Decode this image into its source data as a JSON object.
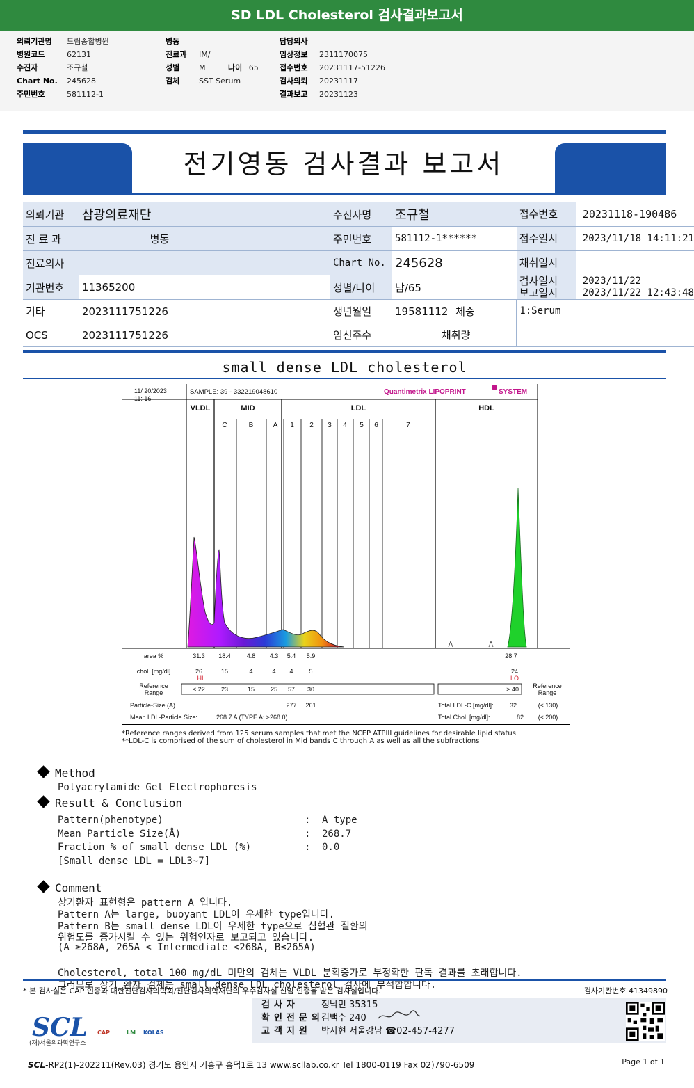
{
  "header": {
    "title": "SD LDL Cholesterol 검사결과보고서",
    "col1": [
      {
        "k": "의뢰기관명",
        "v": "드림종합병원"
      },
      {
        "k": "병원코드",
        "v": "62131"
      },
      {
        "k": "수진자",
        "v": "조규철"
      },
      {
        "k": "Chart No.",
        "v": "245628"
      },
      {
        "k": "주민번호",
        "v": "581112-1"
      }
    ],
    "col2": [
      {
        "k": "병동",
        "v": ""
      },
      {
        "k": "진료과",
        "v": "IM/"
      },
      {
        "k": "성별",
        "v": "M"
      },
      {
        "k": "검체",
        "v": "SST Serum"
      }
    ],
    "age_label": "나이",
    "age_value": "65",
    "col3": [
      {
        "k": "담당의사",
        "v": ""
      },
      {
        "k": "임상정보",
        "v": "2311170075"
      },
      {
        "k": "접수번호",
        "v": "20231117-51226"
      },
      {
        "k": "검사의뢰",
        "v": "20231117"
      },
      {
        "k": "결과보고",
        "v": "20231123"
      }
    ]
  },
  "report": {
    "title": "전기영동 검사결과 보고서",
    "labels": {
      "institution": "의뢰기관",
      "dept": "진 료 과",
      "doctor": "진료의사",
      "inst_no": "기관번호",
      "etc": "기타",
      "ocs": "OCS",
      "patient": "수진자명",
      "rrn": "주민번호",
      "chart": "Chart No.",
      "sex_age": "성별/나이",
      "dob": "생년월일",
      "weight": "체중",
      "pregnancy": "임신주수",
      "volume": "채취량",
      "receipt_no": "접수번호",
      "receipt_time": "접수일시",
      "collect_time": "채취일시",
      "test_date": "검사일시",
      "report_time": "보고일시"
    },
    "values": {
      "institution": "삼광의료재단",
      "ward": "병동",
      "doctor": "",
      "inst_no": "11365200",
      "etc": "2023111751226",
      "ocs": "2023111751226",
      "patient": "조규철",
      "rrn": "581112-1******",
      "chart": "245628",
      "sex_age": "남/65",
      "dob": "19581112",
      "receipt_no": "20231118-190486",
      "receipt_time": "2023/11/18 14:11:21",
      "collect_time": "",
      "test_date": "2023/11/22",
      "report_time": "2023/11/22 12:43:48",
      "specimen": "1:Serum"
    },
    "section_title": "small dense LDL cholesterol"
  },
  "chart_data": {
    "type": "area",
    "datetime": [
      "11/ 20/2023",
      "11:  16"
    ],
    "sample": "SAMPLE:   39 - 332219048610",
    "system": "Quantimetrix LIPOPRINT",
    "system_suffix": "SYSTEM",
    "groups": [
      "VLDL",
      "MID",
      "LDL",
      "HDL"
    ],
    "bands": [
      "C",
      "B",
      "A",
      "1",
      "2",
      "3",
      "4",
      "5",
      "6",
      "7"
    ],
    "row_labels": {
      "area": "area %",
      "chol": "chol. [mg/dl]",
      "ref": [
        "Reference",
        "Range"
      ],
      "particle": "Particle-Size (A)",
      "mean": "Mean LDL-Particle Size:"
    },
    "area_pct": [
      "31.3",
      "18.4",
      "4.8",
      "4.3",
      "5.4",
      "5.9"
    ],
    "hdl_area_pct": "28.7",
    "chol": [
      "26",
      "15",
      "4",
      "4",
      "4",
      "5"
    ],
    "hdl_chol": "24",
    "flag_hi": "HI",
    "flag_lo": "LO",
    "ref_range": [
      "≤ 22",
      "23",
      "15",
      "25",
      "57",
      "30"
    ],
    "hdl_ref": "≥  40",
    "particle_size": [
      "277",
      "261"
    ],
    "mean_size_text": "268.7  A   (TYPE A; ≥268.0)",
    "total_ldl_label": "Total LDL-C  [mg/dl]:",
    "total_ldl": "32",
    "total_ldl_ref": "(≤ 130)",
    "total_chol_label": "Total Chol.  [mg/dl]:",
    "total_chol": "82",
    "total_chol_ref": "(≤ 200)",
    "side_ref": [
      "Reference",
      "Range"
    ]
  },
  "notes": [
    "*Reference ranges derived from 125 serum samples that met the NCEP ATPIII guidelines for desirable lipid status",
    "**LDL-C is comprised of the sum of cholesterol in Mid bands C through A as well as all the subfractions"
  ],
  "method": {
    "heading": "Method",
    "text": "Polyacrylamide Gel Electrophoresis"
  },
  "result": {
    "heading": "Result & Conclusion",
    "rows": [
      {
        "k": "Pattern(phenotype)",
        "v": "A type"
      },
      {
        "k": "Mean Particle Size(Å)",
        "v": "268.7"
      },
      {
        "k": "Fraction % of small dense LDL (%)",
        "v": "0.0"
      }
    ],
    "sep": ":",
    "footnote": "[Small dense LDL = LDL3~7]"
  },
  "comment": {
    "heading": "Comment",
    "lines": [
      "상기환자 표현형은 pattern A 입니다.",
      "Pattern A는 large, buoyant LDL이 우세한 type입니다.",
      "Pattern B는 small dense LDL이 우세한 type으로 심혈관 질환의",
      "위험도를 증가시킬 수 있는 위험인자로 보고되고 있습니다.",
      "(A ≥268A, 265A < Intermediate <268A, B≤265A)",
      "",
      "Cholesterol, total 100 mg/dL 미만의 검체는 VLDL 분획증가로 부정확한 판독 결과를 초래합니다.",
      "그러므로 상기 환자 검체는 small dense LDL cholesterol 검사에 부적합합니다."
    ]
  },
  "footer": {
    "note": "* 본 검사실은 CAP 인증과 대한진단검사의학회/진단검사의학재단의 우수검사실 신임 인증을 받은 검사실입니다.",
    "inst_no": "검사기관번호  41349890",
    "staff": [
      {
        "k": "검사자",
        "v": "정낙민 35315"
      },
      {
        "k": "확인전문의",
        "v": "김백수 240"
      },
      {
        "k": "고객지원",
        "v": "박사현 서울강남 ☎02-457-4277"
      }
    ],
    "logo": "SCL",
    "logo_sub": "(재)서울의과학연구소",
    "certs": [
      "CAP",
      "LM",
      "KOLAS"
    ],
    "bottom_brand": "SCL",
    "bottom": "-RP2(1)-202211(Rev.03)  경기도 용인시 기흥구 흥덕1로 13  www.scllab.co.kr  Tel 1800-0119  Fax 02)790-6509",
    "page": "Page 1 of 1"
  }
}
